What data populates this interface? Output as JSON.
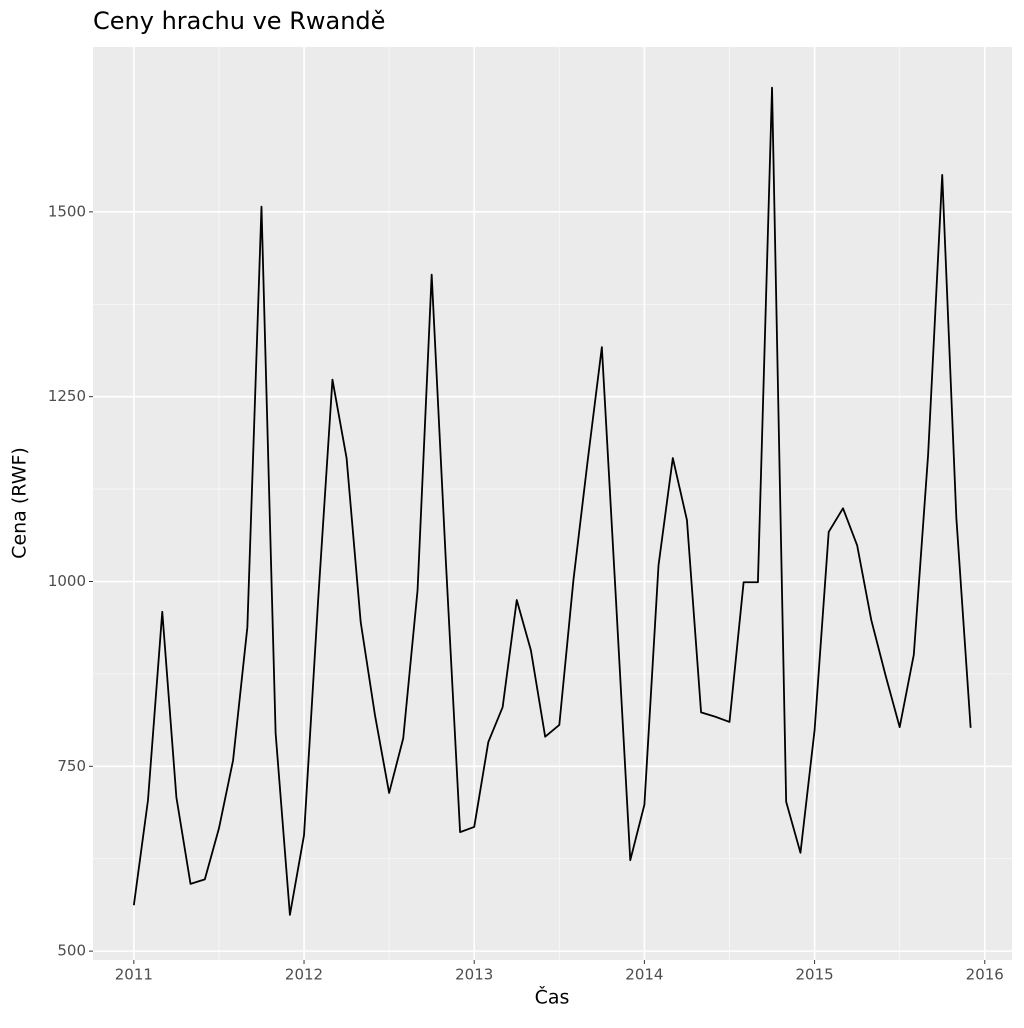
{
  "chart_data": {
    "type": "line",
    "title": "Ceny hrachu ve Rwandě",
    "x_label": "Čas",
    "y_label": "Cena (RWF)",
    "x": [
      2011.0,
      2011.083,
      2011.167,
      2011.25,
      2011.333,
      2011.417,
      2011.5,
      2011.583,
      2011.667,
      2011.75,
      2011.833,
      2011.917,
      2012.0,
      2012.083,
      2012.167,
      2012.25,
      2012.333,
      2012.417,
      2012.5,
      2012.583,
      2012.667,
      2012.75,
      2012.833,
      2012.917,
      2013.0,
      2013.083,
      2013.167,
      2013.25,
      2013.333,
      2013.417,
      2013.5,
      2013.583,
      2013.667,
      2013.75,
      2013.833,
      2013.917,
      2014.0,
      2014.083,
      2014.167,
      2014.25,
      2014.333,
      2014.417,
      2014.5,
      2014.583,
      2014.667,
      2014.75,
      2014.833,
      2014.917,
      2015.0,
      2015.083,
      2015.167,
      2015.25,
      2015.333,
      2015.417,
      2015.5,
      2015.583,
      2015.667,
      2015.75,
      2015.833,
      2015.917
    ],
    "series": [
      {
        "color": "#000000",
        "values": [
          562,
          704,
          959,
          708,
          591,
          597,
          666,
          758,
          938,
          1507,
          795,
          549,
          657,
          975,
          1273,
          1167,
          945,
          819,
          714,
          788,
          988,
          1415,
          1029,
          661,
          668,
          783,
          830,
          975,
          907,
          790,
          806,
          1002,
          1164,
          1317,
          975,
          623,
          698,
          1022,
          1167,
          1083,
          823,
          817,
          810,
          999,
          999,
          1668,
          702,
          633,
          799,
          1067,
          1099,
          1049,
          948,
          873,
          803,
          901,
          1171,
          1550,
          1086,
          802
        ]
      }
    ],
    "xlim": [
      2010.76,
      2016.16
    ],
    "ylim": [
      488,
      1723
    ],
    "xticks": [
      2011,
      2012,
      2013,
      2014,
      2015,
      2016
    ],
    "yticks": [
      500,
      750,
      1000,
      1250,
      1500
    ],
    "grid": true
  }
}
